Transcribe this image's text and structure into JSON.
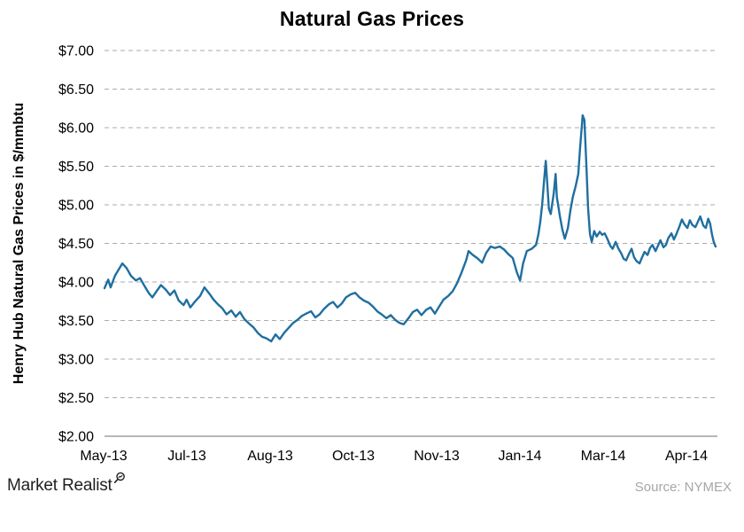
{
  "header": {
    "title": "Natural Gas Prices"
  },
  "branding": {
    "logo_text": "Market Realist",
    "logo_icon": "magnifier-with-chart"
  },
  "footer": {
    "source": "Source: NYMEX"
  },
  "colors": {
    "line": "#1F6F9F",
    "gridline": "#ababab",
    "axis_line": "#8c8c8c",
    "tick_text": "#000000",
    "source_text": "#a6a6a6",
    "background": "#ffffff"
  },
  "chart_data": {
    "type": "line",
    "title": "Natural Gas Prices",
    "xlabel": "",
    "ylabel": "Henry Hub Natural Gas Prices in $/mmbtu",
    "ylim": [
      2.0,
      7.0
    ],
    "y_tick_step": 0.5,
    "y_tick_labels": [
      "$2.00",
      "$2.50",
      "$3.00",
      "$3.50",
      "$4.00",
      "$4.50",
      "$5.00",
      "$5.50",
      "$6.00",
      "$6.50",
      "$7.00"
    ],
    "x_tick_labels": [
      "May-13",
      "Jul-13",
      "Aug-13",
      "Oct-13",
      "Nov-13",
      "Jan-14",
      "Mar-14",
      "Apr-14"
    ],
    "grid": "horizontal-dashed",
    "legend": "none",
    "series": [
      {
        "color": "#1F6F9F",
        "points_format": "[x_fraction_of_plot_width, price_usd_per_mmbtu]",
        "points": [
          [
            0.0,
            3.92
          ],
          [
            0.006,
            4.03
          ],
          [
            0.01,
            3.93
          ],
          [
            0.017,
            4.08
          ],
          [
            0.023,
            4.16
          ],
          [
            0.029,
            4.24
          ],
          [
            0.036,
            4.18
          ],
          [
            0.043,
            4.08
          ],
          [
            0.051,
            4.02
          ],
          [
            0.058,
            4.05
          ],
          [
            0.065,
            3.95
          ],
          [
            0.072,
            3.86
          ],
          [
            0.078,
            3.8
          ],
          [
            0.085,
            3.88
          ],
          [
            0.092,
            3.96
          ],
          [
            0.1,
            3.9
          ],
          [
            0.107,
            3.83
          ],
          [
            0.114,
            3.89
          ],
          [
            0.121,
            3.76
          ],
          [
            0.129,
            3.7
          ],
          [
            0.134,
            3.77
          ],
          [
            0.14,
            3.67
          ],
          [
            0.147,
            3.74
          ],
          [
            0.156,
            3.82
          ],
          [
            0.163,
            3.93
          ],
          [
            0.171,
            3.85
          ],
          [
            0.178,
            3.77
          ],
          [
            0.185,
            3.71
          ],
          [
            0.192,
            3.66
          ],
          [
            0.199,
            3.58
          ],
          [
            0.207,
            3.63
          ],
          [
            0.214,
            3.55
          ],
          [
            0.221,
            3.61
          ],
          [
            0.228,
            3.52
          ],
          [
            0.236,
            3.46
          ],
          [
            0.243,
            3.41
          ],
          [
            0.25,
            3.34
          ],
          [
            0.257,
            3.29
          ],
          [
            0.264,
            3.27
          ],
          [
            0.272,
            3.23
          ],
          [
            0.279,
            3.32
          ],
          [
            0.286,
            3.26
          ],
          [
            0.293,
            3.34
          ],
          [
            0.301,
            3.41
          ],
          [
            0.308,
            3.47
          ],
          [
            0.315,
            3.51
          ],
          [
            0.322,
            3.56
          ],
          [
            0.329,
            3.59
          ],
          [
            0.337,
            3.62
          ],
          [
            0.344,
            3.54
          ],
          [
            0.351,
            3.58
          ],
          [
            0.358,
            3.65
          ],
          [
            0.366,
            3.71
          ],
          [
            0.373,
            3.74
          ],
          [
            0.38,
            3.67
          ],
          [
            0.387,
            3.72
          ],
          [
            0.394,
            3.8
          ],
          [
            0.402,
            3.84
          ],
          [
            0.409,
            3.86
          ],
          [
            0.416,
            3.8
          ],
          [
            0.423,
            3.76
          ],
          [
            0.431,
            3.73
          ],
          [
            0.438,
            3.68
          ],
          [
            0.445,
            3.62
          ],
          [
            0.452,
            3.58
          ],
          [
            0.46,
            3.53
          ],
          [
            0.467,
            3.57
          ],
          [
            0.474,
            3.51
          ],
          [
            0.481,
            3.47
          ],
          [
            0.488,
            3.45
          ],
          [
            0.496,
            3.53
          ],
          [
            0.503,
            3.61
          ],
          [
            0.51,
            3.64
          ],
          [
            0.517,
            3.57
          ],
          [
            0.525,
            3.64
          ],
          [
            0.532,
            3.67
          ],
          [
            0.539,
            3.59
          ],
          [
            0.546,
            3.68
          ],
          [
            0.553,
            3.77
          ],
          [
            0.561,
            3.82
          ],
          [
            0.568,
            3.88
          ],
          [
            0.575,
            3.98
          ],
          [
            0.582,
            4.11
          ],
          [
            0.59,
            4.28
          ],
          [
            0.594,
            4.4
          ],
          [
            0.601,
            4.35
          ],
          [
            0.608,
            4.31
          ],
          [
            0.616,
            4.25
          ],
          [
            0.623,
            4.38
          ],
          [
            0.63,
            4.46
          ],
          [
            0.637,
            4.44
          ],
          [
            0.645,
            4.46
          ],
          [
            0.652,
            4.42
          ],
          [
            0.659,
            4.36
          ],
          [
            0.666,
            4.31
          ],
          [
            0.673,
            4.12
          ],
          [
            0.678,
            4.02
          ],
          [
            0.683,
            4.24
          ],
          [
            0.689,
            4.4
          ],
          [
            0.697,
            4.43
          ],
          [
            0.704,
            4.48
          ],
          [
            0.708,
            4.62
          ],
          [
            0.711,
            4.78
          ],
          [
            0.714,
            5.0
          ],
          [
            0.717,
            5.3
          ],
          [
            0.72,
            5.57
          ],
          [
            0.723,
            5.2
          ],
          [
            0.725,
            4.95
          ],
          [
            0.728,
            4.88
          ],
          [
            0.733,
            5.15
          ],
          [
            0.736,
            5.4
          ],
          [
            0.738,
            5.1
          ],
          [
            0.743,
            4.85
          ],
          [
            0.747,
            4.68
          ],
          [
            0.751,
            4.56
          ],
          [
            0.756,
            4.7
          ],
          [
            0.76,
            4.92
          ],
          [
            0.764,
            5.1
          ],
          [
            0.769,
            5.25
          ],
          [
            0.773,
            5.4
          ],
          [
            0.776,
            5.75
          ],
          [
            0.779,
            6.05
          ],
          [
            0.78,
            6.16
          ],
          [
            0.783,
            6.1
          ],
          [
            0.786,
            5.55
          ],
          [
            0.789,
            4.95
          ],
          [
            0.792,
            4.62
          ],
          [
            0.795,
            4.52
          ],
          [
            0.799,
            4.66
          ],
          [
            0.803,
            4.59
          ],
          [
            0.808,
            4.65
          ],
          [
            0.812,
            4.61
          ],
          [
            0.816,
            4.63
          ],
          [
            0.821,
            4.55
          ],
          [
            0.825,
            4.47
          ],
          [
            0.829,
            4.43
          ],
          [
            0.834,
            4.52
          ],
          [
            0.838,
            4.44
          ],
          [
            0.843,
            4.37
          ],
          [
            0.847,
            4.3
          ],
          [
            0.851,
            4.28
          ],
          [
            0.856,
            4.37
          ],
          [
            0.86,
            4.43
          ],
          [
            0.864,
            4.32
          ],
          [
            0.868,
            4.27
          ],
          [
            0.873,
            4.24
          ],
          [
            0.877,
            4.32
          ],
          [
            0.881,
            4.39
          ],
          [
            0.886,
            4.35
          ],
          [
            0.89,
            4.44
          ],
          [
            0.894,
            4.48
          ],
          [
            0.899,
            4.4
          ],
          [
            0.903,
            4.47
          ],
          [
            0.907,
            4.54
          ],
          [
            0.912,
            4.45
          ],
          [
            0.916,
            4.48
          ],
          [
            0.92,
            4.57
          ],
          [
            0.925,
            4.63
          ],
          [
            0.929,
            4.55
          ],
          [
            0.933,
            4.62
          ],
          [
            0.938,
            4.72
          ],
          [
            0.942,
            4.81
          ],
          [
            0.946,
            4.75
          ],
          [
            0.951,
            4.7
          ],
          [
            0.955,
            4.8
          ],
          [
            0.959,
            4.74
          ],
          [
            0.964,
            4.71
          ],
          [
            0.968,
            4.78
          ],
          [
            0.972,
            4.85
          ],
          [
            0.977,
            4.73
          ],
          [
            0.981,
            4.7
          ],
          [
            0.985,
            4.82
          ],
          [
            0.988,
            4.76
          ],
          [
            0.991,
            4.62
          ],
          [
            0.994,
            4.52
          ],
          [
            0.997,
            4.46
          ]
        ]
      }
    ],
    "annotations": {
      "source": "Source: NYMEX"
    }
  }
}
